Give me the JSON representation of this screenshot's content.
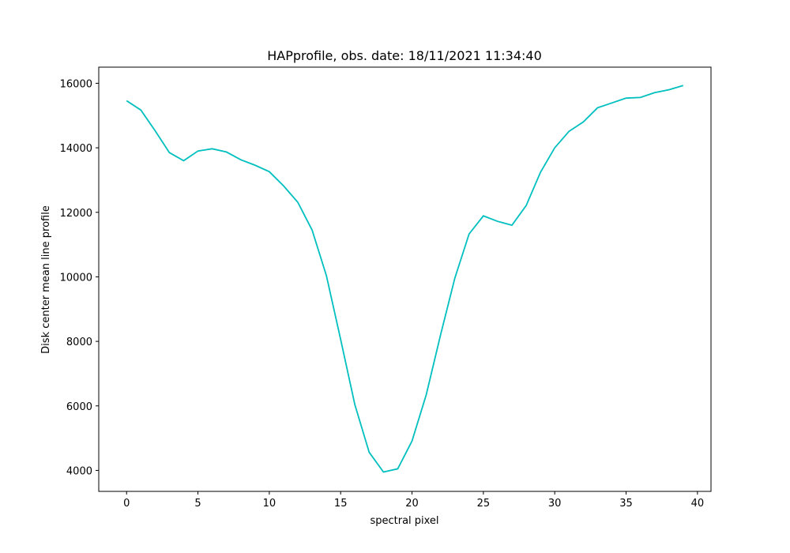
{
  "chart_data": {
    "type": "line",
    "title": "HAPprofile, obs. date: 18/11/2021 11:34:40",
    "x_label": "spectral pixel",
    "y_label": "Disk center mean line profile",
    "x": [
      0,
      1,
      2,
      3,
      4,
      5,
      6,
      7,
      8,
      9,
      10,
      11,
      12,
      13,
      14,
      15,
      16,
      17,
      18,
      19,
      20,
      21,
      22,
      23,
      24,
      25,
      26,
      27,
      28,
      29,
      30,
      31,
      32,
      33,
      34,
      35,
      36,
      37,
      38,
      39
    ],
    "series": [
      {
        "color": "#00bfbf",
        "values": [
          15460,
          15170,
          14530,
          13850,
          13600,
          13900,
          13970,
          13870,
          13630,
          13460,
          13260,
          12820,
          12310,
          11450,
          10040,
          8060,
          6030,
          4560,
          3950,
          4050,
          4910,
          6350,
          8200,
          9960,
          11330,
          11890,
          11720,
          11600,
          12210,
          13240,
          14000,
          14510,
          14800,
          15240,
          15390,
          15540,
          15560,
          15710,
          15800,
          15930
        ]
      }
    ],
    "xlim": [
      -1.95,
      40.95
    ],
    "ylim": [
      3350,
      16500
    ],
    "xticks": [
      0,
      5,
      10,
      15,
      20,
      25,
      30,
      35,
      40
    ],
    "yticks": [
      4000,
      6000,
      8000,
      10000,
      12000,
      14000,
      16000
    ]
  }
}
